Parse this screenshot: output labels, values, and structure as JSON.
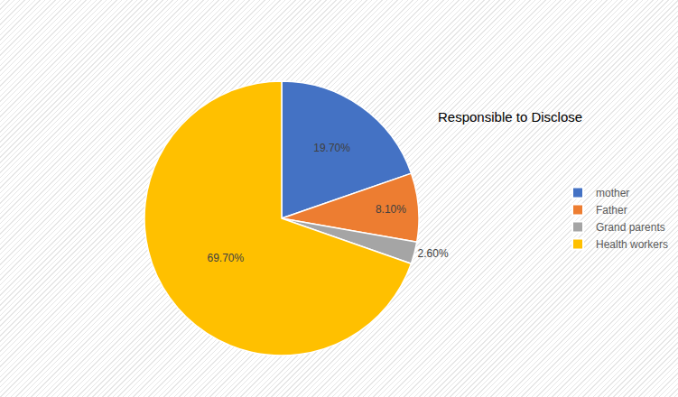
{
  "chart_data": {
    "type": "pie",
    "title": "Responsible to Disclose",
    "categories": [
      "mother",
      "Father",
      "Grand parents",
      "Health workers"
    ],
    "values": [
      19.7,
      8.1,
      2.6,
      69.7
    ],
    "value_labels": [
      "19.70%",
      "8.10%",
      "2.60%",
      "69.70%"
    ],
    "colors": [
      "#4472c4",
      "#ed7d31",
      "#a5a5a5",
      "#ffc000"
    ],
    "legend": "right",
    "data_labels": true
  }
}
